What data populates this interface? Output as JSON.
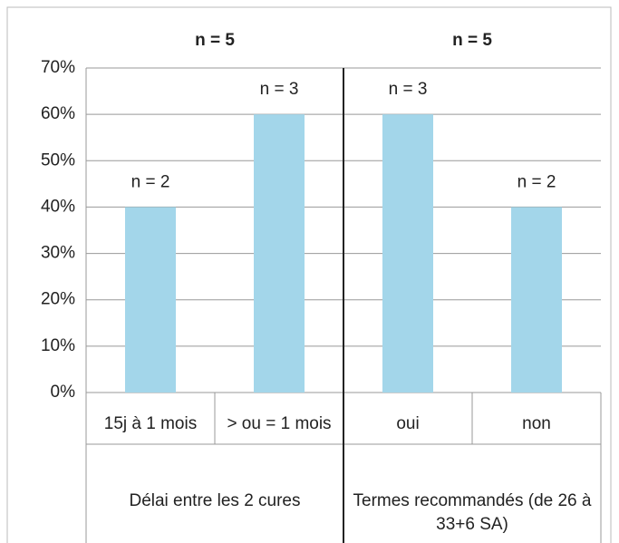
{
  "chart_data": {
    "type": "bar",
    "categories": [
      "15j à 1 mois",
      "> ou = 1 mois",
      "oui",
      "non"
    ],
    "values": [
      40,
      60,
      60,
      40
    ],
    "bar_labels": [
      "n = 2",
      "n = 3",
      "n = 3",
      "n = 2"
    ],
    "groups": [
      {
        "label": "Délai entre les 2 cures",
        "n": "n = 5",
        "categories": [
          0,
          1
        ]
      },
      {
        "label": "Termes recommandés (de 26 à 33+6 SA)",
        "n": "n = 5",
        "categories": [
          2,
          3
        ]
      }
    ],
    "color": "#a3d6ea",
    "ylim": [
      0,
      70
    ],
    "yticks": [
      {
        "value": 0,
        "label": "0%"
      },
      {
        "value": 10,
        "label": "10%"
      },
      {
        "value": 20,
        "label": "20%"
      },
      {
        "value": 30,
        "label": "30%"
      },
      {
        "value": 40,
        "label": "40%"
      },
      {
        "value": 50,
        "label": "50%"
      },
      {
        "value": 60,
        "label": "60%"
      },
      {
        "value": 70,
        "label": "70%"
      }
    ],
    "grid": true
  }
}
